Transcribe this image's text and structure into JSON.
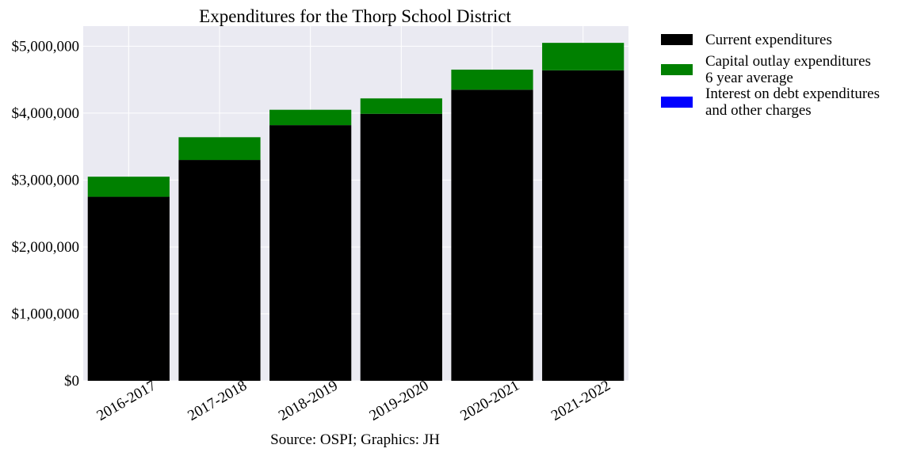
{
  "chart_data": {
    "type": "bar",
    "stacked": true,
    "title": "Expenditures for the Thorp School District",
    "caption": "Source: OSPI; Graphics: JH",
    "xlabel": "",
    "ylabel": "",
    "categories": [
      "2016-2017",
      "2017-2018",
      "2018-2019",
      "2019-2020",
      "2020-2021",
      "2021-2022"
    ],
    "series": [
      {
        "name": "Current expenditures",
        "color": "#000000",
        "values": [
          2750000,
          3300000,
          3820000,
          3990000,
          4350000,
          4640000
        ]
      },
      {
        "name": "Capital outlay expenditures\n6 year average",
        "color": "#008000",
        "values": [
          300000,
          340000,
          230000,
          230000,
          300000,
          410000
        ]
      },
      {
        "name": "Interest on debt expenditures\nand other charges",
        "color": "#0000ff",
        "values": [
          0,
          0,
          0,
          0,
          0,
          0
        ]
      }
    ],
    "ylim": [
      0,
      5300000
    ],
    "yticks": [
      0,
      1000000,
      2000000,
      3000000,
      4000000,
      5000000
    ],
    "ytick_labels": [
      "$0",
      "$1,000,000",
      "$2,000,000",
      "$3,000,000",
      "$4,000,000",
      "$5,000,000"
    ],
    "grid": true,
    "legend_position": "outside-top-right",
    "colors": {
      "plot_background": "#eaeaf2",
      "grid": "#ffffff"
    }
  }
}
